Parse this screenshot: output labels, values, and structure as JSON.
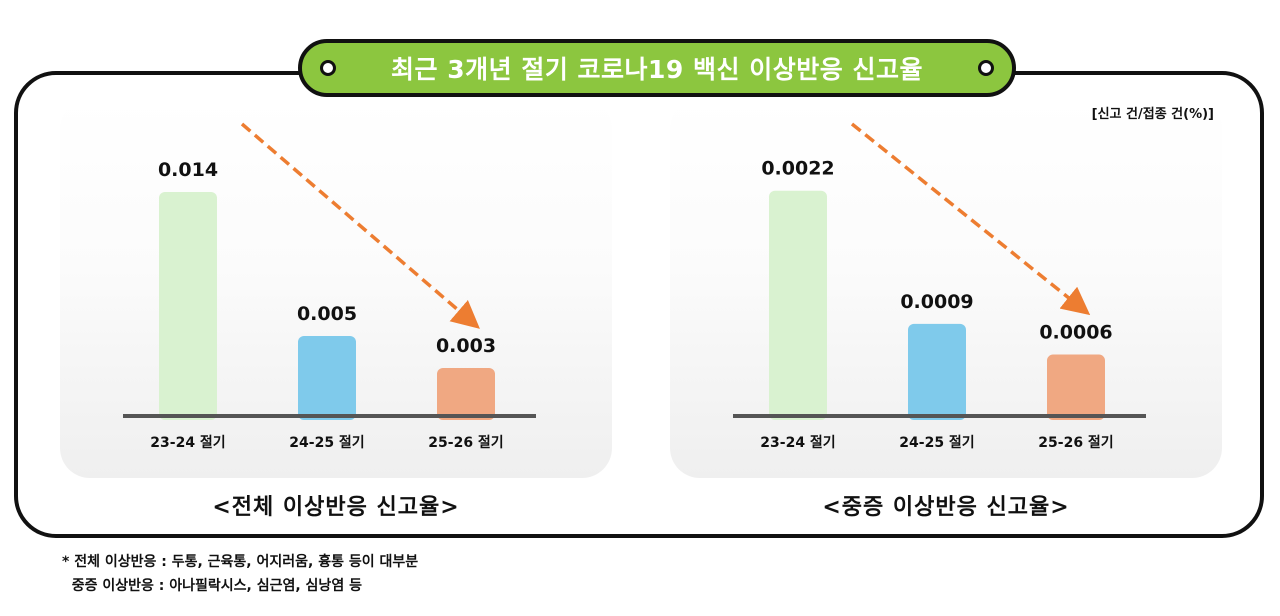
{
  "main_title": "최근 3개년 절기 코로나19 백신 이상반응 신고율",
  "unit_label": "[신고 건/접종 건(%)]",
  "colors": {
    "title_bg": "#8cc63f",
    "bar_1": "#d9f2d0",
    "bar_2": "#7fcaeb",
    "bar_3": "#f0a882",
    "trend_arrow": "#ed7d31",
    "baseline": "#555555"
  },
  "chart_data": [
    {
      "type": "bar",
      "title": "<전체 이상반응 신고율>",
      "categories": [
        "23-24 절기",
        "24-25 절기",
        "25-26 절기"
      ],
      "values": [
        0.014,
        0.005,
        0.003
      ],
      "value_labels": [
        "0.014",
        "0.005",
        "0.003"
      ],
      "ylim": [
        0,
        0.016
      ],
      "grid": false,
      "annotation": "downward dashed trend arrow"
    },
    {
      "type": "bar",
      "title": "<중증 이상반응 신고율>",
      "categories": [
        "23-24 절기",
        "24-25 절기",
        "25-26 절기"
      ],
      "values": [
        0.0022,
        0.0009,
        0.0006
      ],
      "value_labels": [
        "0.0022",
        "0.0009",
        "0.0006"
      ],
      "ylim": [
        0,
        0.0025
      ],
      "grid": false,
      "annotation": "downward dashed trend arrow"
    }
  ],
  "footnotes": [
    "* 전체 이상반응 : 두통, 근육통, 어지러움, 흉통 등이 대부분",
    "  중증 이상반응 : 아나필락시스, 심근염, 심낭염 등"
  ]
}
